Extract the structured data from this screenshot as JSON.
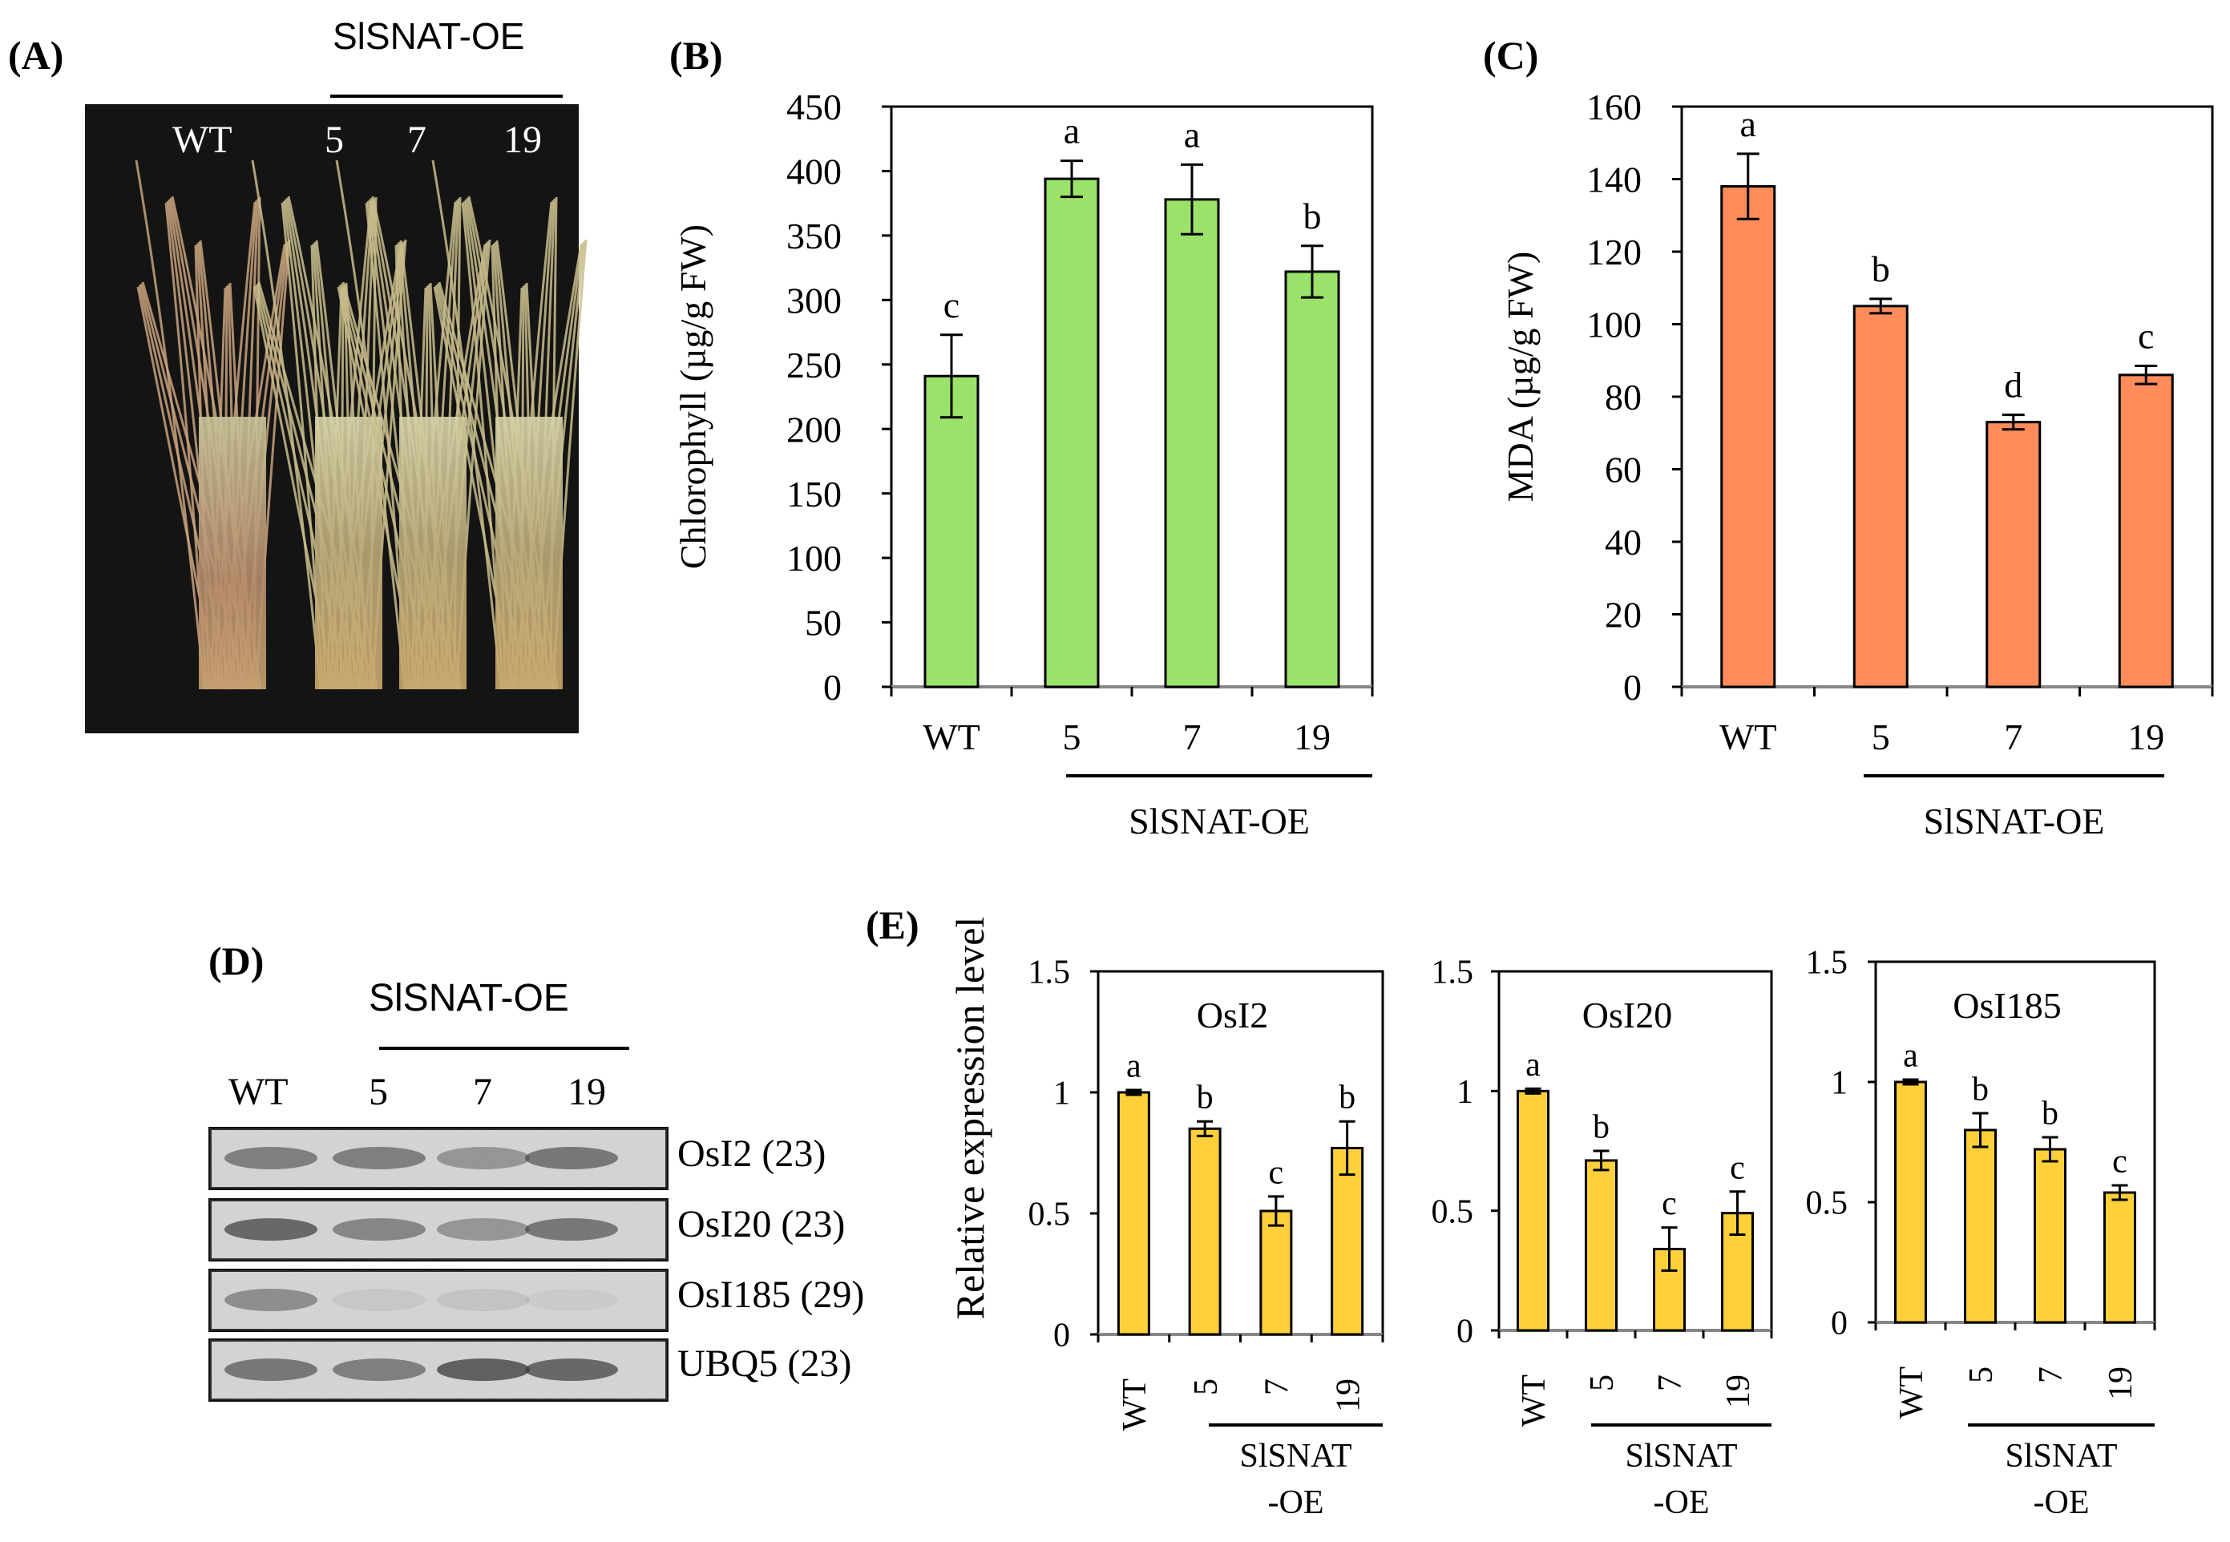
{
  "panels": {
    "A": {
      "label": "(A)",
      "group": "SlSNAT-OE",
      "lines": [
        "WT",
        "5",
        "7",
        "19"
      ]
    },
    "B": {
      "label": "(B)"
    },
    "C": {
      "label": "(C)"
    },
    "D": {
      "label": "(D)",
      "group": "SlSNAT-OE",
      "lanes": [
        "WT",
        "5",
        "7",
        "19"
      ],
      "genes": [
        "OsI2 (23)",
        "OsI20 (23)",
        "OsI185 (29)",
        "UBQ5 (23)"
      ]
    },
    "E": {
      "label": "(E)",
      "ylabel": "Relative  expression  level"
    }
  },
  "colors": {
    "green": "#9BE26B",
    "orange": "#FF8C5A",
    "yellow": "#FFD03A"
  },
  "chart_data": [
    {
      "id": "B",
      "type": "bar",
      "categories": [
        "WT",
        "5",
        "7",
        "19"
      ],
      "values": [
        241,
        394,
        378,
        322
      ],
      "errors": [
        32,
        14,
        27,
        20
      ],
      "letters": [
        "c",
        "a",
        "a",
        "b"
      ],
      "ylabel": "Chlorophyll  (µg/g  FW)",
      "ylim": [
        0,
        450
      ],
      "yticks": [
        0,
        50,
        100,
        150,
        200,
        250,
        300,
        350,
        400,
        450
      ],
      "group_label": "SlSNAT-OE",
      "color": "#9BE26B"
    },
    {
      "id": "C",
      "type": "bar",
      "categories": [
        "WT",
        "5",
        "7",
        "19"
      ],
      "values": [
        138,
        105,
        73,
        86
      ],
      "errors": [
        9,
        2,
        2,
        2.5
      ],
      "letters": [
        "a",
        "b",
        "d",
        "c"
      ],
      "ylabel": "MDA (µg/g  FW)",
      "ylim": [
        0,
        160
      ],
      "yticks": [
        0,
        20,
        40,
        60,
        80,
        100,
        120,
        140,
        160
      ],
      "group_label": "SlSNAT-OE",
      "color": "#FF8C5A"
    },
    {
      "id": "E1",
      "type": "bar",
      "title": "OsI2",
      "categories": [
        "WT",
        "5",
        "7",
        "19"
      ],
      "values": [
        1.0,
        0.85,
        0.51,
        0.77
      ],
      "errors": [
        0.01,
        0.03,
        0.06,
        0.11
      ],
      "letters": [
        "a",
        "b",
        "c",
        "b"
      ],
      "ylim": [
        0,
        1.5
      ],
      "yticks": [
        "0",
        "0.5",
        "1",
        "1.5"
      ],
      "group_label": [
        "SlSNAT",
        "-OE"
      ],
      "color": "#FFD03A"
    },
    {
      "id": "E2",
      "type": "bar",
      "title": "OsI20",
      "categories": [
        "WT",
        "5",
        "7",
        "19"
      ],
      "values": [
        1.0,
        0.71,
        0.34,
        0.49
      ],
      "errors": [
        0.01,
        0.04,
        0.09,
        0.09
      ],
      "letters": [
        "a",
        "b",
        "c",
        "c"
      ],
      "ylim": [
        0,
        1.5
      ],
      "yticks": [
        "0",
        "0.5",
        "1",
        "1.5"
      ],
      "group_label": [
        "SlSNAT",
        "-OE"
      ],
      "color": "#FFD03A"
    },
    {
      "id": "E3",
      "type": "bar",
      "title": "OsI185",
      "categories": [
        "WT",
        "5",
        "7",
        "19"
      ],
      "values": [
        1.0,
        0.8,
        0.72,
        0.54
      ],
      "errors": [
        0.01,
        0.07,
        0.05,
        0.03
      ],
      "letters": [
        "a",
        "b",
        "b",
        "c"
      ],
      "ylim": [
        0,
        1.5
      ],
      "yticks": [
        "0",
        "0.5",
        "1",
        "1.5"
      ],
      "group_label": [
        "SlSNAT",
        "-OE"
      ],
      "color": "#FFD03A"
    }
  ]
}
